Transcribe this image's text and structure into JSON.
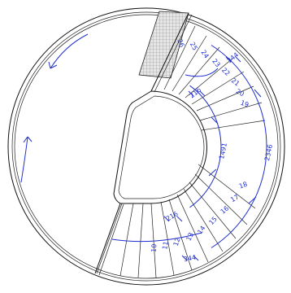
{
  "colors": {
    "background": "#ffffff",
    "lines": "#111111",
    "annotation": "#1f2fd0",
    "hatch_fill": "#e6e6e6",
    "hatch_lines": "#8c8c8c"
  },
  "step_numbers": [
    "10",
    "11",
    "12",
    "13",
    "14",
    "15",
    "16",
    "17",
    "18",
    "19",
    "20",
    "21",
    "22",
    "23",
    "24",
    "25",
    "26"
  ],
  "dimensions": {
    "inner_radius": "1491",
    "outer_radius": "2346",
    "lower_step_rise": "216",
    "lower_step_going": "344",
    "upper_step_rise": "216",
    "upper_step_going": "344"
  }
}
